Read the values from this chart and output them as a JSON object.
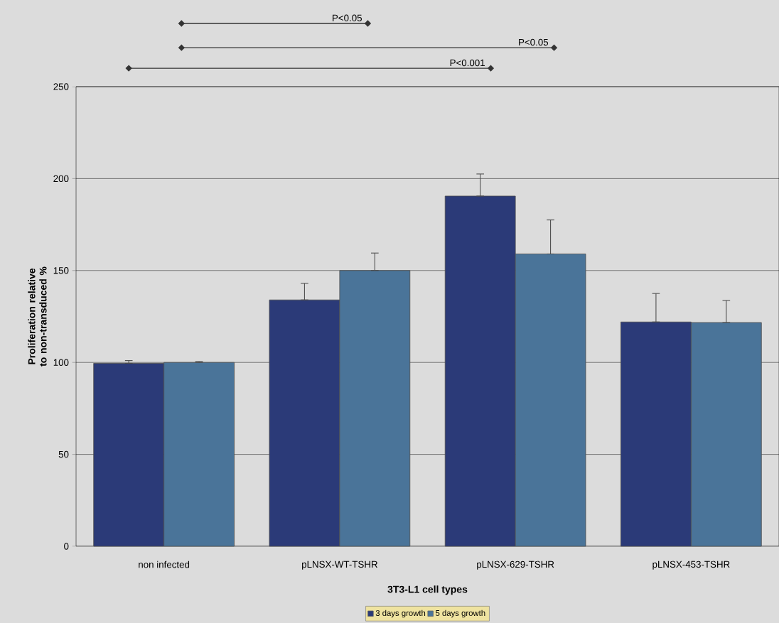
{
  "chart_data": {
    "type": "bar",
    "xlabel": "3T3-L1 cell types",
    "ylabel": "Proliferation relative to non-transduced %",
    "categories": [
      "non infected",
      "pLNSX-WT-TSHR",
      "pLNSX-629-TSHR",
      "pLNSX-453-TSHR"
    ],
    "series": [
      {
        "name": "3 days growth",
        "color": "#2b3a78",
        "values": [
          99.5,
          134,
          190.5,
          122
        ],
        "errors": [
          [
            99.5,
            101
          ],
          [
            134,
            143
          ],
          [
            190.5,
            202.5
          ],
          [
            122,
            137.5
          ]
        ]
      },
      {
        "name": "5 days growth",
        "color": "#4a7499",
        "values": [
          100,
          150,
          159,
          121.7
        ],
        "errors": [
          [
            100,
            100.5
          ],
          [
            150,
            159.5
          ],
          [
            159,
            177.5
          ],
          [
            121.7,
            133.7
          ]
        ]
      }
    ],
    "ylim": [
      0,
      250
    ],
    "yticks": [
      0,
      50,
      100,
      150,
      200,
      250
    ],
    "grid": "y",
    "legend": "bottom",
    "annotations": [
      "P<0.05",
      "P<0.05",
      "P<0.001"
    ]
  }
}
